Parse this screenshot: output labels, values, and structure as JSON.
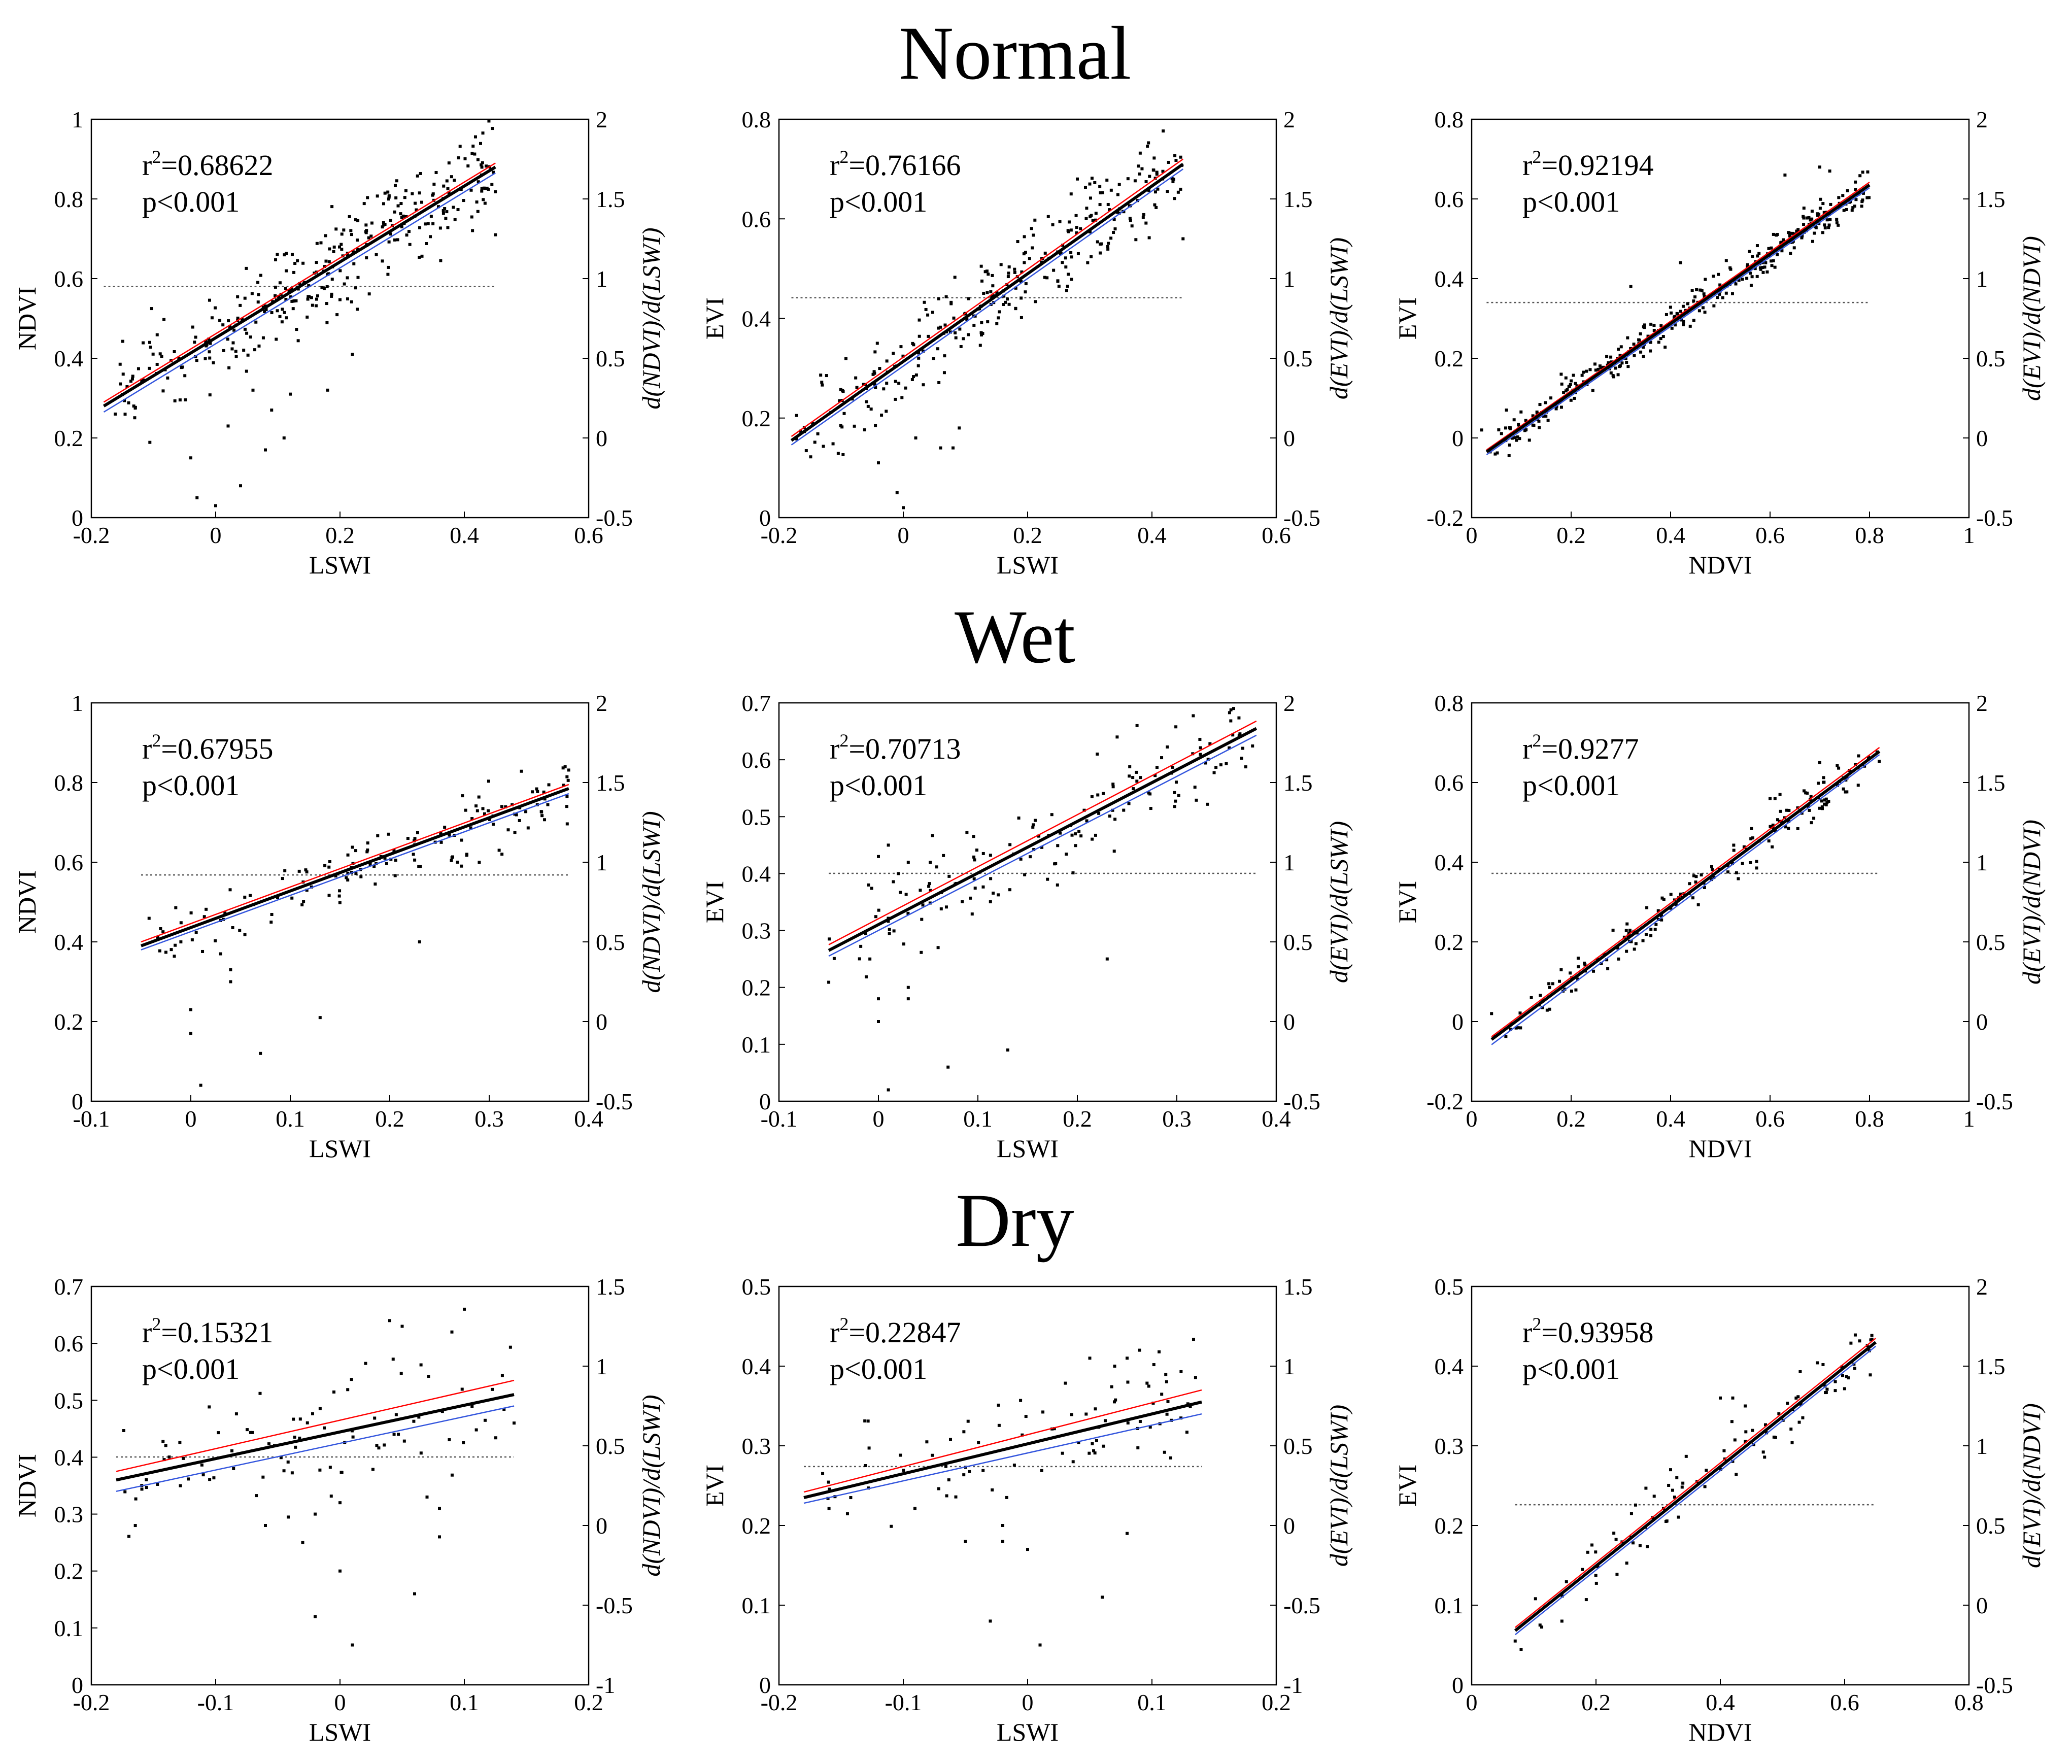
{
  "row_titles": [
    "Normal",
    "Wet",
    "Dry"
  ],
  "colors": {
    "fit": "#000000",
    "upper": "#ff0000",
    "lower": "#3355dd",
    "points": "#000000",
    "derivative": "#555555"
  },
  "chart_data": [
    {
      "type": "scatter",
      "row": "Normal",
      "xlabel": "LSWI",
      "ylabel": "NDVI",
      "y2label": "d(NDVI)/d(LSWI)",
      "xlim": [
        -0.2,
        0.6
      ],
      "xticks": [
        -0.2,
        0,
        0.2,
        0.4,
        0.6
      ],
      "ylim": [
        0,
        1
      ],
      "yticks": [
        0,
        0.2,
        0.4,
        0.6,
        0.8,
        1
      ],
      "y2lim": [
        -0.5,
        2
      ],
      "y2ticks": [
        -0.5,
        0,
        0.5,
        1,
        1.5,
        2
      ],
      "r2_text": "0.68622",
      "p_text": "p<0.001",
      "fit": {
        "x": [
          -0.18,
          0.45
        ],
        "y": [
          0.28,
          0.88
        ]
      },
      "upper": {
        "x": [
          -0.18,
          0.45
        ],
        "y": [
          0.29,
          0.89
        ]
      },
      "lower": {
        "x": [
          -0.18,
          0.45
        ],
        "y": [
          0.265,
          0.865
        ]
      },
      "derivative_y2": 0.95,
      "derivative_x": [
        -0.18,
        0.45
      ],
      "point_seed": 11,
      "point_count": 340,
      "noise": 0.06,
      "outliers": [
        [
          -0.04,
          0.15
        ],
        [
          -0.03,
          0.05
        ],
        [
          0,
          0.03
        ],
        [
          0.02,
          0.23
        ],
        [
          0.04,
          0.08
        ],
        [
          0.06,
          0.32
        ],
        [
          0.08,
          0.17
        ],
        [
          0.09,
          0.27
        ],
        [
          0.11,
          0.2
        ],
        [
          0.12,
          0.31
        ],
        [
          0.18,
          0.32
        ],
        [
          0.22,
          0.41
        ],
        [
          0.45,
          0.71
        ]
      ]
    },
    {
      "type": "scatter",
      "row": "Normal",
      "xlabel": "LSWI",
      "ylabel": "EVI",
      "y2label": "d(EVI)/d(LSWI)",
      "xlim": [
        -0.2,
        0.6
      ],
      "xticks": [
        -0.2,
        0,
        0.2,
        0.4,
        0.6
      ],
      "ylim": [
        0,
        0.8
      ],
      "yticks": [
        0,
        0.2,
        0.4,
        0.6,
        0.8
      ],
      "y2lim": [
        -0.5,
        2
      ],
      "y2ticks": [
        -0.5,
        0,
        0.5,
        1,
        1.5,
        2
      ],
      "r2_text": "0.76166",
      "p_text": "p<0.001",
      "fit": {
        "x": [
          -0.18,
          0.45
        ],
        "y": [
          0.155,
          0.71
        ]
      },
      "upper": {
        "x": [
          -0.18,
          0.45
        ],
        "y": [
          0.163,
          0.72
        ]
      },
      "lower": {
        "x": [
          -0.18,
          0.45
        ],
        "y": [
          0.146,
          0.7
        ]
      },
      "derivative_y2": 0.88,
      "derivative_x": [
        -0.18,
        0.45
      ],
      "point_seed": 23,
      "point_count": 300,
      "noise": 0.045,
      "outliers": [
        [
          -0.04,
          0.11
        ],
        [
          0,
          0.02
        ],
        [
          -0.01,
          0.05
        ],
        [
          0.02,
          0.16
        ],
        [
          0.06,
          0.14
        ],
        [
          0.08,
          0.14
        ],
        [
          0.09,
          0.18
        ],
        [
          0.27,
          0.65
        ],
        [
          0.28,
          0.68
        ],
        [
          0.3,
          0.67
        ],
        [
          0.45,
          0.56
        ]
      ]
    },
    {
      "type": "scatter",
      "row": "Normal",
      "xlabel": "NDVI",
      "ylabel": "EVI",
      "y2label": "d(EVI)/d(NDVI)",
      "xlim": [
        0,
        1
      ],
      "xticks": [
        0,
        0.2,
        0.4,
        0.6,
        0.8,
        1
      ],
      "ylim": [
        -0.2,
        0.8
      ],
      "yticks": [
        -0.2,
        0,
        0.2,
        0.4,
        0.6,
        0.8
      ],
      "y2lim": [
        -0.5,
        2
      ],
      "y2ticks": [
        -0.5,
        0,
        0.5,
        1,
        1.5,
        2
      ],
      "r2_text": "0.92194",
      "p_text": "p<0.001",
      "fit": {
        "x": [
          0.03,
          0.8
        ],
        "y": [
          -0.035,
          0.635
        ]
      },
      "upper": {
        "x": [
          0.03,
          0.8
        ],
        "y": [
          -0.03,
          0.642
        ]
      },
      "lower": {
        "x": [
          0.03,
          0.8
        ],
        "y": [
          -0.042,
          0.628
        ]
      },
      "derivative_y2": 0.85,
      "derivative_x": [
        0.03,
        0.8
      ],
      "point_seed": 37,
      "point_count": 320,
      "noise": 0.022,
      "outliers": [
        [
          0.02,
          0.02
        ],
        [
          0.07,
          0.07
        ],
        [
          0.18,
          0.16
        ],
        [
          0.32,
          0.38
        ],
        [
          0.36,
          0.24
        ],
        [
          0.42,
          0.44
        ],
        [
          0.63,
          0.66
        ],
        [
          0.7,
          0.68
        ],
        [
          0.72,
          0.67
        ]
      ]
    },
    {
      "type": "scatter",
      "row": "Wet",
      "xlabel": "LSWI",
      "ylabel": "NDVI",
      "y2label": "d(NDVI)/d(LSWI)",
      "xlim": [
        -0.1,
        0.4
      ],
      "xticks": [
        -0.1,
        0,
        0.1,
        0.2,
        0.3,
        0.4
      ],
      "ylim": [
        0,
        1
      ],
      "yticks": [
        0,
        0.2,
        0.4,
        0.6,
        0.8,
        1
      ],
      "y2lim": [
        -0.5,
        2
      ],
      "y2ticks": [
        -0.5,
        0,
        0.5,
        1,
        1.5,
        2
      ],
      "r2_text": "0.67955",
      "p_text": "p<0.001",
      "fit": {
        "x": [
          -0.05,
          0.38
        ],
        "y": [
          0.39,
          0.785
        ]
      },
      "upper": {
        "x": [
          -0.05,
          0.38
        ],
        "y": [
          0.4,
          0.795
        ]
      },
      "lower": {
        "x": [
          -0.05,
          0.38
        ],
        "y": [
          0.38,
          0.772
        ]
      },
      "derivative_y2": 0.92,
      "derivative_x": [
        -0.05,
        0.38
      ],
      "point_seed": 51,
      "point_count": 150,
      "noise": 0.04,
      "outliers": [
        [
          -0.01,
          0.4
        ],
        [
          0,
          0.23
        ],
        [
          0,
          0.17
        ],
        [
          0.01,
          0.04
        ],
        [
          0.03,
          0.37
        ],
        [
          0.04,
          0.33
        ],
        [
          0.04,
          0.3
        ],
        [
          0.07,
          0.12
        ],
        [
          0.13,
          0.21
        ],
        [
          0.23,
          0.4
        ],
        [
          0.29,
          0.6
        ],
        [
          0.31,
          0.63
        ]
      ]
    },
    {
      "type": "scatter",
      "row": "Wet",
      "xlabel": "LSWI",
      "ylabel": "EVI",
      "y2label": "d(EVI)/d(LSWI)",
      "xlim": [
        -0.1,
        0.4
      ],
      "xticks": [
        -0.1,
        0,
        0.1,
        0.2,
        0.3,
        0.4
      ],
      "ylim": [
        0,
        0.7
      ],
      "yticks": [
        0,
        0.1,
        0.2,
        0.3,
        0.4,
        0.5,
        0.6,
        0.7
      ],
      "y2lim": [
        -0.5,
        2
      ],
      "y2ticks": [
        -0.5,
        0,
        0.5,
        1,
        1.5,
        2
      ],
      "r2_text": "0.70713",
      "p_text": "p<0.001",
      "fit": {
        "x": [
          -0.05,
          0.38
        ],
        "y": [
          0.265,
          0.655
        ]
      },
      "upper": {
        "x": [
          -0.05,
          0.38
        ],
        "y": [
          0.275,
          0.668
        ]
      },
      "lower": {
        "x": [
          -0.05,
          0.38
        ],
        "y": [
          0.255,
          0.643
        ]
      },
      "derivative_y2": 0.93,
      "derivative_x": [
        -0.05,
        0.38
      ],
      "point_seed": 67,
      "point_count": 150,
      "noise": 0.04,
      "outliers": [
        [
          -0.01,
          0.38
        ],
        [
          0,
          0.43
        ],
        [
          0.01,
          0.45
        ],
        [
          0.02,
          0.4
        ],
        [
          0.03,
          0.42
        ],
        [
          0,
          0.18
        ],
        [
          0,
          0.14
        ],
        [
          0.03,
          0.2
        ],
        [
          0.03,
          0.18
        ],
        [
          0.01,
          0.02
        ],
        [
          0.06,
          0.27
        ],
        [
          0.07,
          0.06
        ],
        [
          0.13,
          0.09
        ],
        [
          0.23,
          0.25
        ],
        [
          0.17,
          0.39
        ],
        [
          0.18,
          0.38
        ],
        [
          0.22,
          0.61
        ],
        [
          0.24,
          0.64
        ],
        [
          0.26,
          0.66
        ]
      ]
    },
    {
      "type": "scatter",
      "row": "Wet",
      "xlabel": "NDVI",
      "ylabel": "EVI",
      "y2label": "d(EVI)/d(NDVI)",
      "xlim": [
        0,
        1
      ],
      "xticks": [
        0,
        0.2,
        0.4,
        0.6,
        0.8,
        1
      ],
      "ylim": [
        -0.2,
        0.8
      ],
      "yticks": [
        -0.2,
        0,
        0.2,
        0.4,
        0.6,
        0.8
      ],
      "y2lim": [
        -0.5,
        2
      ],
      "y2ticks": [
        -0.5,
        0,
        0.5,
        1,
        1.5,
        2
      ],
      "r2_text": "0.9277",
      "p_text": "p<0.001",
      "fit": {
        "x": [
          0.04,
          0.82
        ],
        "y": [
          -0.045,
          0.678
        ]
      },
      "upper": {
        "x": [
          0.04,
          0.82
        ],
        "y": [
          -0.038,
          0.688
        ]
      },
      "lower": {
        "x": [
          0.04,
          0.82
        ],
        "y": [
          -0.058,
          0.67
        ]
      },
      "derivative_y2": 0.93,
      "derivative_x": [
        0.04,
        0.82
      ],
      "point_seed": 79,
      "point_count": 170,
      "noise": 0.025,
      "outliers": [
        [
          0.04,
          0.02
        ],
        [
          0.12,
          0.06
        ],
        [
          0.18,
          0.13
        ],
        [
          0.6,
          0.56
        ],
        [
          0.61,
          0.56
        ],
        [
          0.62,
          0.57
        ],
        [
          0.7,
          0.65
        ]
      ]
    },
    {
      "type": "scatter",
      "row": "Dry",
      "xlabel": "LSWI",
      "ylabel": "NDVI",
      "y2label": "d(NDVI)/d(LSWI)",
      "xlim": [
        -0.2,
        0.2
      ],
      "xticks": [
        -0.2,
        -0.1,
        0,
        0.1,
        0.2
      ],
      "ylim": [
        0,
        0.7
      ],
      "yticks": [
        0,
        0.1,
        0.2,
        0.3,
        0.4,
        0.5,
        0.6,
        0.7
      ],
      "y2lim": [
        -1,
        1.5
      ],
      "y2ticks": [
        -1,
        -0.5,
        0,
        0.5,
        1,
        1.5
      ],
      "r2_text": "0.15321",
      "p_text": "p<0.001",
      "fit": {
        "x": [
          -0.18,
          0.14
        ],
        "y": [
          0.36,
          0.51
        ]
      },
      "upper": {
        "x": [
          -0.18,
          0.14
        ],
        "y": [
          0.375,
          0.535
        ]
      },
      "lower": {
        "x": [
          -0.18,
          0.14
        ],
        "y": [
          0.34,
          0.49
        ]
      },
      "derivative_y2": 0.43,
      "derivative_x": [
        -0.18,
        0.14
      ],
      "point_seed": 91,
      "point_count": 90,
      "noise": 0.05,
      "outliers": [
        [
          -0.06,
          0.28
        ],
        [
          -0.03,
          0.25
        ],
        [
          -0.02,
          0.3
        ],
        [
          -0.02,
          0.12
        ],
        [
          0,
          0.32
        ],
        [
          0,
          0.2
        ],
        [
          0.01,
          0.07
        ],
        [
          0.06,
          0.16
        ],
        [
          0.07,
          0.33
        ],
        [
          0.08,
          0.26
        ],
        [
          0.08,
          0.31
        ],
        [
          0.05,
          0.63
        ],
        [
          0.04,
          0.64
        ],
        [
          0.09,
          0.62
        ],
        [
          0.1,
          0.66
        ],
        [
          0.14,
          0.46
        ]
      ]
    },
    {
      "type": "scatter",
      "row": "Dry",
      "xlabel": "LSWI",
      "ylabel": "EVI",
      "y2label": "d(EVI)/d(LSWI)",
      "xlim": [
        -0.2,
        0.2
      ],
      "xticks": [
        -0.2,
        -0.1,
        0,
        0.1,
        0.2
      ],
      "ylim": [
        0,
        0.5
      ],
      "yticks": [
        0,
        0.1,
        0.2,
        0.3,
        0.4,
        0.5
      ],
      "y2lim": [
        -1,
        1.5
      ],
      "y2ticks": [
        -1,
        -0.5,
        0,
        0.5,
        1,
        1.5
      ],
      "r2_text": "0.22847",
      "p_text": "p<0.001",
      "fit": {
        "x": [
          -0.18,
          0.14
        ],
        "y": [
          0.235,
          0.355
        ]
      },
      "upper": {
        "x": [
          -0.18,
          0.14
        ],
        "y": [
          0.242,
          0.37
        ]
      },
      "lower": {
        "x": [
          -0.18,
          0.14
        ],
        "y": [
          0.228,
          0.34
        ]
      },
      "derivative_y2": 0.37,
      "derivative_x": [
        -0.18,
        0.14
      ],
      "point_seed": 103,
      "point_count": 90,
      "noise": 0.035,
      "outliers": [
        [
          -0.05,
          0.18
        ],
        [
          -0.03,
          0.08
        ],
        [
          -0.02,
          0.18
        ],
        [
          -0.02,
          0.2
        ],
        [
          0,
          0.17
        ],
        [
          0.01,
          0.05
        ],
        [
          0.06,
          0.11
        ],
        [
          0.08,
          0.19
        ],
        [
          0.05,
          0.41
        ],
        [
          0.07,
          0.4
        ],
        [
          0.08,
          0.41
        ],
        [
          0.09,
          0.42
        ]
      ]
    },
    {
      "type": "scatter",
      "row": "Dry",
      "xlabel": "NDVI",
      "ylabel": "EVI",
      "y2label": "d(EVI)/d(NDVI)",
      "xlim": [
        0,
        0.8
      ],
      "xticks": [
        0,
        0.2,
        0.4,
        0.6,
        0.8
      ],
      "ylim": [
        0,
        0.5
      ],
      "yticks": [
        0,
        0.1,
        0.2,
        0.3,
        0.4,
        0.5
      ],
      "y2lim": [
        -0.5,
        2
      ],
      "y2ticks": [
        -0.5,
        0,
        0.5,
        1,
        1.5,
        2
      ],
      "r2_text": "0.93958",
      "p_text": "p<0.001",
      "fit": {
        "x": [
          0.07,
          0.65
        ],
        "y": [
          0.068,
          0.43
        ]
      },
      "upper": {
        "x": [
          0.07,
          0.65
        ],
        "y": [
          0.072,
          0.435
        ]
      },
      "lower": {
        "x": [
          0.07,
          0.65
        ],
        "y": [
          0.063,
          0.425
        ]
      },
      "derivative_y2": 0.63,
      "derivative_x": [
        0.07,
        0.65
      ],
      "point_seed": 117,
      "point_count": 95,
      "noise": 0.018,
      "outliers": [
        [
          0.07,
          0.055
        ],
        [
          0.11,
          0.075
        ],
        [
          0.32,
          0.27
        ],
        [
          0.33,
          0.26
        ],
        [
          0.4,
          0.36
        ],
        [
          0.42,
          0.36
        ],
        [
          0.44,
          0.35
        ]
      ]
    }
  ]
}
